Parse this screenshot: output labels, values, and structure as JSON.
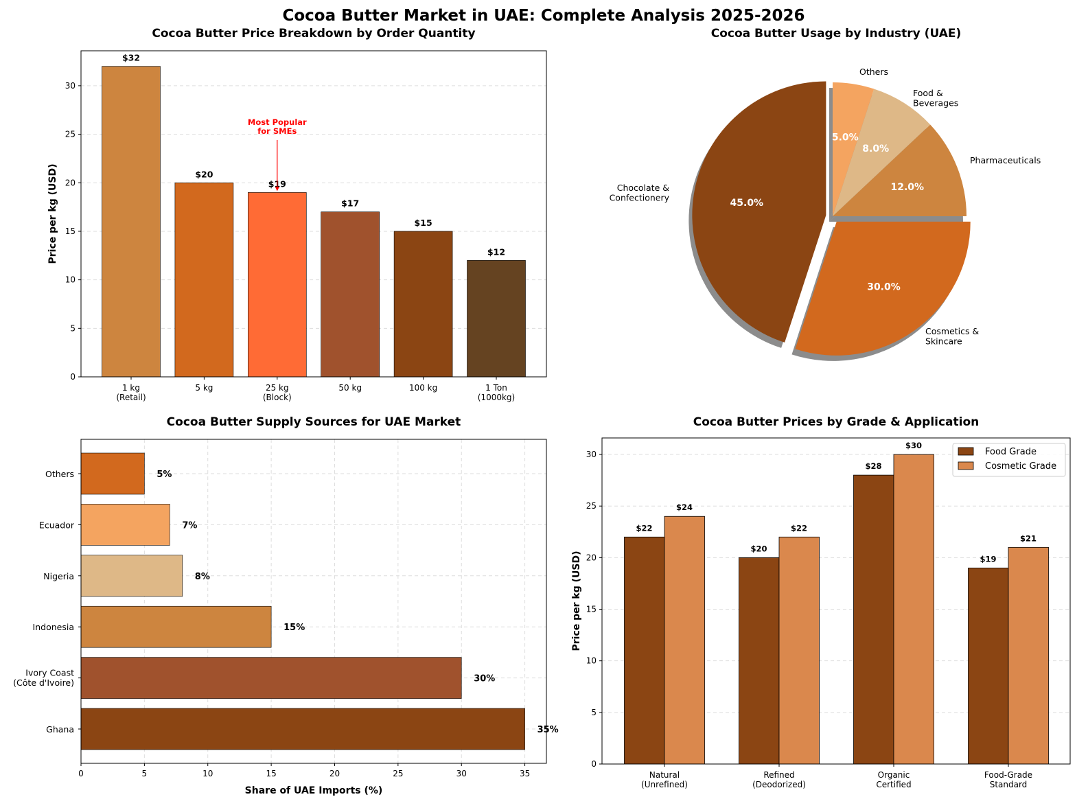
{
  "title": "Cocoa Butter Market in UAE: Complete Analysis 2025-2026",
  "chart_data": [
    {
      "type": "bar",
      "title": "Cocoa Butter Price Breakdown by Order Quantity",
      "xlabel": "",
      "ylabel": "Price per kg (USD)",
      "categories": [
        "1 kg\n(Retail)",
        "5 kg",
        "25 kg\n(Block)",
        "50 kg",
        "100 kg",
        "1 Ton\n(1000kg)"
      ],
      "values": [
        32,
        20,
        19,
        17,
        15,
        12
      ],
      "data_labels": [
        "$32",
        "$20",
        "$19",
        "$17",
        "$15",
        "$12"
      ],
      "colors": [
        "#CD853F",
        "#D2691E",
        "#FF6B35",
        "#A0522D",
        "#8B4513",
        "#654321"
      ],
      "ylim": [
        0,
        33.6
      ],
      "yticks": [
        0,
        5,
        10,
        15,
        20,
        25,
        30
      ],
      "grid": "y dashed",
      "annotation": {
        "text": "Most Popular\nfor SMEs",
        "target_category": "25 kg\n(Block)",
        "target_value": 19,
        "color": "#FF0000"
      }
    },
    {
      "type": "pie",
      "title": "Cocoa Butter Usage by Industry (UAE)",
      "labels": [
        "Chocolate &\nConfectionery",
        "Cosmetics &\nSkincare",
        "Pharmaceuticals",
        "Food &\nBeverages",
        "Others"
      ],
      "values": [
        45,
        30,
        12,
        8,
        5
      ],
      "pct_labels": [
        "45.0%",
        "30.0%",
        "12.0%",
        "8.0%",
        "5.0%"
      ],
      "colors": [
        "#8B4513",
        "#D2691E",
        "#CD853F",
        "#DEB887",
        "#F4A460"
      ],
      "exploded": [
        true,
        true,
        false,
        false,
        false
      ],
      "shadow": true,
      "start_angle": 90
    },
    {
      "type": "bar",
      "orientation": "horizontal",
      "title": "Cocoa Butter Supply Sources for UAE Market",
      "xlabel": "Share of UAE Imports (%)",
      "ylabel": "",
      "categories": [
        "Ghana",
        "Ivory Coast\n(Côte d'Ivoire)",
        "Indonesia",
        "Nigeria",
        "Ecuador",
        "Others"
      ],
      "values": [
        35,
        30,
        15,
        8,
        7,
        5
      ],
      "data_labels": [
        "35%",
        "30%",
        "15%",
        "8%",
        "7%",
        "5%"
      ],
      "colors": [
        "#8B4513",
        "#A0522D",
        "#CD853F",
        "#DEB887",
        "#F4A460",
        "#D2691E"
      ],
      "xlim": [
        0,
        36.7
      ],
      "xticks": [
        0,
        5,
        10,
        15,
        20,
        25,
        30,
        35
      ],
      "grid": "both dashed"
    },
    {
      "type": "bar",
      "title": "Cocoa Butter Prices by Grade & Application",
      "xlabel": "",
      "ylabel": "Price per kg (USD)",
      "categories": [
        "Natural\n(Unrefined)",
        "Refined\n(Deodorized)",
        "Organic\nCertified",
        "Food-Grade\nStandard"
      ],
      "series": [
        {
          "name": "Food Grade",
          "values": [
            22,
            20,
            28,
            19
          ],
          "data_labels": [
            "$22",
            "$20",
            "$28",
            "$19"
          ],
          "color": "#8B4513"
        },
        {
          "name": "Cosmetic Grade",
          "values": [
            24,
            22,
            30,
            21
          ],
          "data_labels": [
            "$24",
            "$22",
            "$30",
            "$21"
          ],
          "color": "#DA884D"
        }
      ],
      "ylim": [
        0,
        31.6
      ],
      "yticks": [
        0,
        5,
        10,
        15,
        20,
        25,
        30
      ],
      "grid": "y dashed",
      "legend": "top-right"
    }
  ]
}
